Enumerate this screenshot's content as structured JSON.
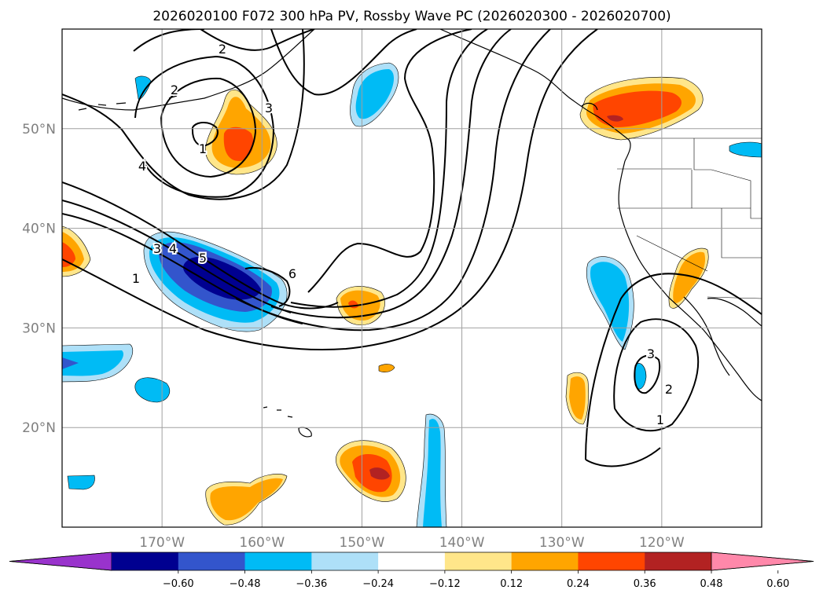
{
  "title": "2026020100 F072 300 hPa PV, Rossby Wave PC (2026020300 - 2026020700)",
  "map": {
    "extent": {
      "lon_min": -180,
      "lon_max": -110,
      "lat_min": 10,
      "lat_max": 60
    },
    "lat_ticks": [
      {
        "value": 50,
        "label": "50°N"
      },
      {
        "value": 40,
        "label": "40°N"
      },
      {
        "value": 30,
        "label": "30°N"
      },
      {
        "value": 20,
        "label": "20°N"
      }
    ],
    "lon_ticks": [
      {
        "value": -170,
        "label": "170°W"
      },
      {
        "value": -160,
        "label": "160°W"
      },
      {
        "value": -150,
        "label": "150°W"
      },
      {
        "value": -140,
        "label": "140°W"
      },
      {
        "value": -130,
        "label": "130°W"
      },
      {
        "value": -120,
        "label": "120°W"
      }
    ],
    "contour_labels": [
      "1",
      "2",
      "3",
      "4",
      "5",
      "6",
      "1",
      "2",
      "3",
      "4",
      "1",
      "2",
      "3"
    ]
  },
  "colorbar": {
    "tick_labels": [
      "−0.60",
      "−0.48",
      "−0.36",
      "−0.24",
      "−0.12",
      "0.12",
      "0.24",
      "0.36",
      "0.48",
      "0.60"
    ],
    "colors": [
      "#9933cc",
      "#000090",
      "#3355cc",
      "#00bbf5",
      "#aee0f8",
      "#ffffff",
      "#ffe68a",
      "#ffa500",
      "#ff4500",
      "#b22222",
      "#ff88aa"
    ]
  },
  "colors": {
    "grid": "#a0a0a0",
    "contour": "#000000",
    "label": "#808080"
  }
}
